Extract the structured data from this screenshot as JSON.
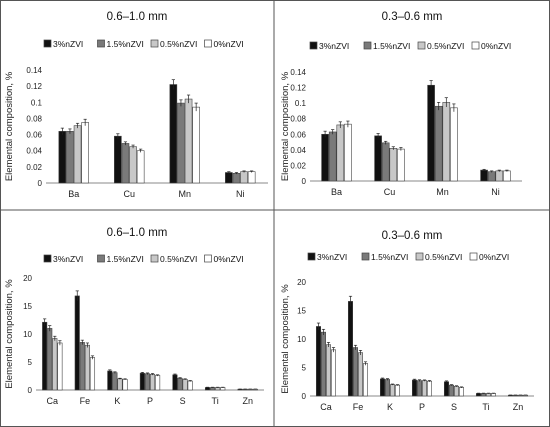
{
  "legend_order": [
    "3%nZVI",
    "1.5%nZVI",
    "0.5%nZVI",
    "0%nZVI"
  ],
  "colors": {
    "3%nZVI": "#111111",
    "1.5%nZVI": "#7a7a7a",
    "0.5%nZVI": "#c8c8c8",
    "0%nZVI": "#ffffff",
    "bar_stroke": "#444444",
    "axis": "#888888",
    "panel_border": "#555555"
  },
  "chart_data": [
    {
      "type": "bar",
      "title": "0.6–1.0 mm",
      "ylabel": "Elemental composition, %",
      "xlabel": "",
      "categories": [
        "Ba",
        "Cu",
        "Mn",
        "Ni"
      ],
      "ylim": [
        0,
        0.14
      ],
      "yticks": [
        0,
        0.02,
        0.04,
        0.06,
        0.08,
        0.1,
        0.12,
        0.14
      ],
      "ytick_labels": [
        "0",
        "0.02",
        "0.04",
        "0.06",
        "0.08",
        "0.1",
        "0.12",
        "0.14"
      ],
      "grid": false,
      "legend_position": "top-left",
      "series": [
        {
          "name": "3%nZVI",
          "values": [
            0.064,
            0.058,
            0.122,
            0.013
          ],
          "errors": [
            0.004,
            0.003,
            0.006,
            0.001
          ]
        },
        {
          "name": "1.5%nZVI",
          "values": [
            0.064,
            0.049,
            0.099,
            0.012
          ],
          "errors": [
            0.003,
            0.002,
            0.004,
            0.001
          ]
        },
        {
          "name": "0.5%nZVI",
          "values": [
            0.071,
            0.045,
            0.104,
            0.014
          ],
          "errors": [
            0.003,
            0.002,
            0.005,
            0.001
          ]
        },
        {
          "name": "0%nZVI",
          "values": [
            0.075,
            0.04,
            0.094,
            0.014
          ],
          "errors": [
            0.004,
            0.002,
            0.005,
            0.001
          ]
        }
      ]
    },
    {
      "type": "bar",
      "title": "0.3–0.6 mm",
      "ylabel": "Elemental composition, %",
      "xlabel": "",
      "categories": [
        "Ba",
        "Cu",
        "Mn",
        "Ni"
      ],
      "ylim": [
        0,
        0.14
      ],
      "yticks": [
        0,
        0.02,
        0.04,
        0.06,
        0.08,
        0.1,
        0.12,
        0.14
      ],
      "ytick_labels": [
        "0",
        "0.02",
        "0.04",
        "0.06",
        "0.08",
        "0.1",
        "0.12",
        "0.14"
      ],
      "grid": false,
      "legend_position": "top-left",
      "series": [
        {
          "name": "3%nZVI",
          "values": [
            0.06,
            0.058,
            0.123,
            0.014
          ],
          "errors": [
            0.004,
            0.003,
            0.006,
            0.001
          ]
        },
        {
          "name": "1.5%nZVI",
          "values": [
            0.063,
            0.049,
            0.096,
            0.012
          ],
          "errors": [
            0.003,
            0.002,
            0.005,
            0.001
          ]
        },
        {
          "name": "0.5%nZVI",
          "values": [
            0.072,
            0.042,
            0.101,
            0.013
          ],
          "errors": [
            0.004,
            0.002,
            0.006,
            0.001
          ]
        },
        {
          "name": "0%nZVI",
          "values": [
            0.073,
            0.041,
            0.094,
            0.013
          ],
          "errors": [
            0.004,
            0.002,
            0.005,
            0.001
          ]
        }
      ]
    },
    {
      "type": "bar",
      "title": "0.6–1.0 mm",
      "ylabel": "Elemental composition, %",
      "xlabel": "",
      "categories": [
        "Ca",
        "Fe",
        "K",
        "P",
        "S",
        "Ti",
        "Zn"
      ],
      "ylim": [
        0,
        20
      ],
      "yticks": [
        0,
        5,
        10,
        15,
        20
      ],
      "ytick_labels": [
        "0",
        "5",
        "10",
        "15",
        "20"
      ],
      "grid": false,
      "legend_position": "top-left",
      "series": [
        {
          "name": "3%nZVI",
          "values": [
            12.1,
            16.8,
            3.4,
            3.0,
            2.7,
            0.45,
            0.15
          ],
          "errors": [
            0.6,
            0.9,
            0.2,
            0.15,
            0.15,
            0.05,
            0.02
          ]
        },
        {
          "name": "1.5%nZVI",
          "values": [
            11.0,
            8.5,
            3.1,
            2.9,
            2.1,
            0.45,
            0.15
          ],
          "errors": [
            0.5,
            0.4,
            0.15,
            0.15,
            0.1,
            0.05,
            0.02
          ]
        },
        {
          "name": "0.5%nZVI",
          "values": [
            9.2,
            8.0,
            2.0,
            2.8,
            1.9,
            0.45,
            0.15
          ],
          "errors": [
            0.4,
            0.4,
            0.1,
            0.15,
            0.1,
            0.05,
            0.02
          ]
        },
        {
          "name": "0%nZVI",
          "values": [
            8.4,
            5.8,
            1.9,
            2.6,
            1.6,
            0.45,
            0.15
          ],
          "errors": [
            0.4,
            0.3,
            0.1,
            0.12,
            0.1,
            0.05,
            0.02
          ]
        }
      ]
    },
    {
      "type": "bar",
      "title": "0.3–0.6 mm",
      "ylabel": "Elemental composition, %",
      "xlabel": "",
      "categories": [
        "Ca",
        "Fe",
        "K",
        "P",
        "S",
        "Ti",
        "Zn"
      ],
      "ylim": [
        0,
        20
      ],
      "yticks": [
        0,
        5,
        10,
        15,
        20
      ],
      "ytick_labels": [
        "0",
        "5",
        "10",
        "15",
        "20"
      ],
      "grid": false,
      "legend_position": "top-left",
      "series": [
        {
          "name": "3%nZVI",
          "values": [
            12.2,
            16.6,
            3.0,
            2.8,
            2.5,
            0.45,
            0.15
          ],
          "errors": [
            0.6,
            0.9,
            0.15,
            0.15,
            0.15,
            0.05,
            0.02
          ]
        },
        {
          "name": "1.5%nZVI",
          "values": [
            11.2,
            8.5,
            2.9,
            2.7,
            1.9,
            0.45,
            0.15
          ],
          "errors": [
            0.5,
            0.4,
            0.15,
            0.15,
            0.1,
            0.05,
            0.02
          ]
        },
        {
          "name": "0.5%nZVI",
          "values": [
            9.0,
            7.6,
            2.0,
            2.7,
            1.7,
            0.45,
            0.15
          ],
          "errors": [
            0.4,
            0.4,
            0.1,
            0.12,
            0.1,
            0.05,
            0.02
          ]
        },
        {
          "name": "0%nZVI",
          "values": [
            8.1,
            5.7,
            1.9,
            2.6,
            1.5,
            0.45,
            0.15
          ],
          "errors": [
            0.4,
            0.3,
            0.1,
            0.12,
            0.1,
            0.05,
            0.02
          ]
        }
      ]
    }
  ]
}
